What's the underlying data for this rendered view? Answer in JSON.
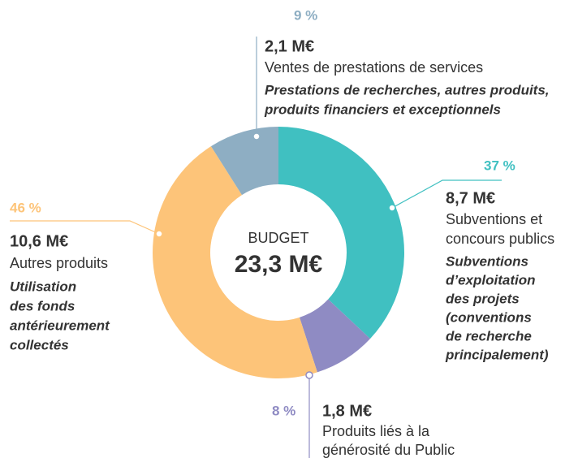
{
  "chart_data": {
    "type": "pie",
    "donut": true,
    "center_label": "BUDGET",
    "total_label": "23,3 M€",
    "values": [
      37,
      8,
      46,
      9
    ],
    "value_labels": [
      "37 %",
      "8 %",
      "46 %",
      "9 %"
    ],
    "colors": [
      "#40c0c1",
      "#8f8bc3",
      "#fdc479",
      "#8eaec3"
    ],
    "amount_labels": [
      "8,7 M€",
      "1,8 M€",
      "10,6 M€",
      "2,1 M€"
    ],
    "categories": [
      [
        "Subventions et",
        "concours publics"
      ],
      [
        "Produits liés à la",
        "générosité du Public"
      ],
      [
        "Autres produits"
      ],
      [
        "Ventes de prestations de services"
      ]
    ],
    "details": [
      [
        "Subventions",
        "d’exploitation",
        "des projets",
        "(conventions",
        "de recherche",
        "principalement)"
      ],
      [],
      [
        "Utilisation",
        "des fonds",
        "antérieurement",
        "collectés"
      ],
      [
        "Prestations de recherches, autres produits,",
        "produits financiers et exceptionnels"
      ]
    ]
  }
}
